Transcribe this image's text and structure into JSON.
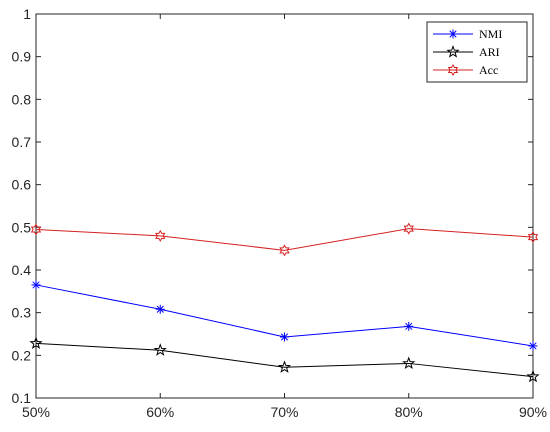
{
  "chart_data": {
    "type": "line",
    "title": "",
    "xlabel": "",
    "ylabel": "",
    "categories": [
      "50%",
      "60%",
      "70%",
      "80%",
      "90%"
    ],
    "ylim": [
      0.1,
      1.0
    ],
    "yticks": [
      "0.1",
      "0.2",
      "0.3",
      "0.4",
      "0.5",
      "0.6",
      "0.7",
      "0.8",
      "0.9",
      "1"
    ],
    "grid": false,
    "legend_position": "top-right",
    "series": [
      {
        "name": "NMI",
        "values": [
          0.365,
          0.308,
          0.243,
          0.268,
          0.222
        ],
        "color": "#0000ff",
        "marker": "asterisk"
      },
      {
        "name": "ARI",
        "values": [
          0.228,
          0.212,
          0.172,
          0.181,
          0.15
        ],
        "color": "#000000",
        "marker": "pentagram"
      },
      {
        "name": "Acc",
        "values": [
          0.495,
          0.48,
          0.446,
          0.497,
          0.477
        ],
        "color": "#d62020",
        "marker": "hexagram"
      }
    ]
  }
}
